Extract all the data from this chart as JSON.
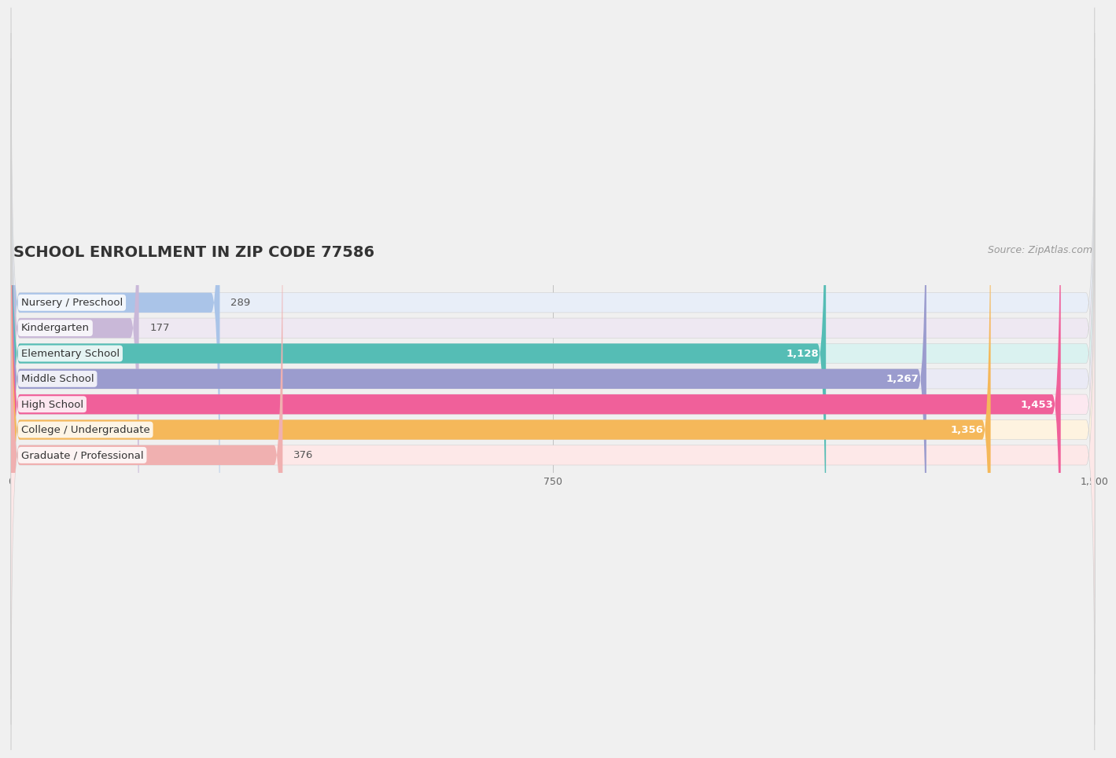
{
  "title": "SCHOOL ENROLLMENT IN ZIP CODE 77586",
  "source": "Source: ZipAtlas.com",
  "categories": [
    "Nursery / Preschool",
    "Kindergarten",
    "Elementary School",
    "Middle School",
    "High School",
    "College / Undergraduate",
    "Graduate / Professional"
  ],
  "values": [
    289,
    177,
    1128,
    1267,
    1453,
    1356,
    376
  ],
  "bar_colors": [
    "#aac4e8",
    "#c9b8d8",
    "#55bdb5",
    "#9b9cce",
    "#f0609a",
    "#f5b85a",
    "#f0b0b0"
  ],
  "bar_bg_colors": [
    "#e8eef8",
    "#eee8f2",
    "#daf2f0",
    "#eaeaf5",
    "#fce8f0",
    "#fef3e0",
    "#fde8e8"
  ],
  "value_label_white": [
    false,
    false,
    true,
    true,
    true,
    true,
    false
  ],
  "xlim": [
    0,
    1500
  ],
  "xticks": [
    0,
    750,
    1500
  ],
  "background_color": "#f0f0f0",
  "title_fontsize": 14,
  "source_fontsize": 9,
  "bar_height": 0.78,
  "label_fontsize": 9.5,
  "value_fontsize": 9.5
}
